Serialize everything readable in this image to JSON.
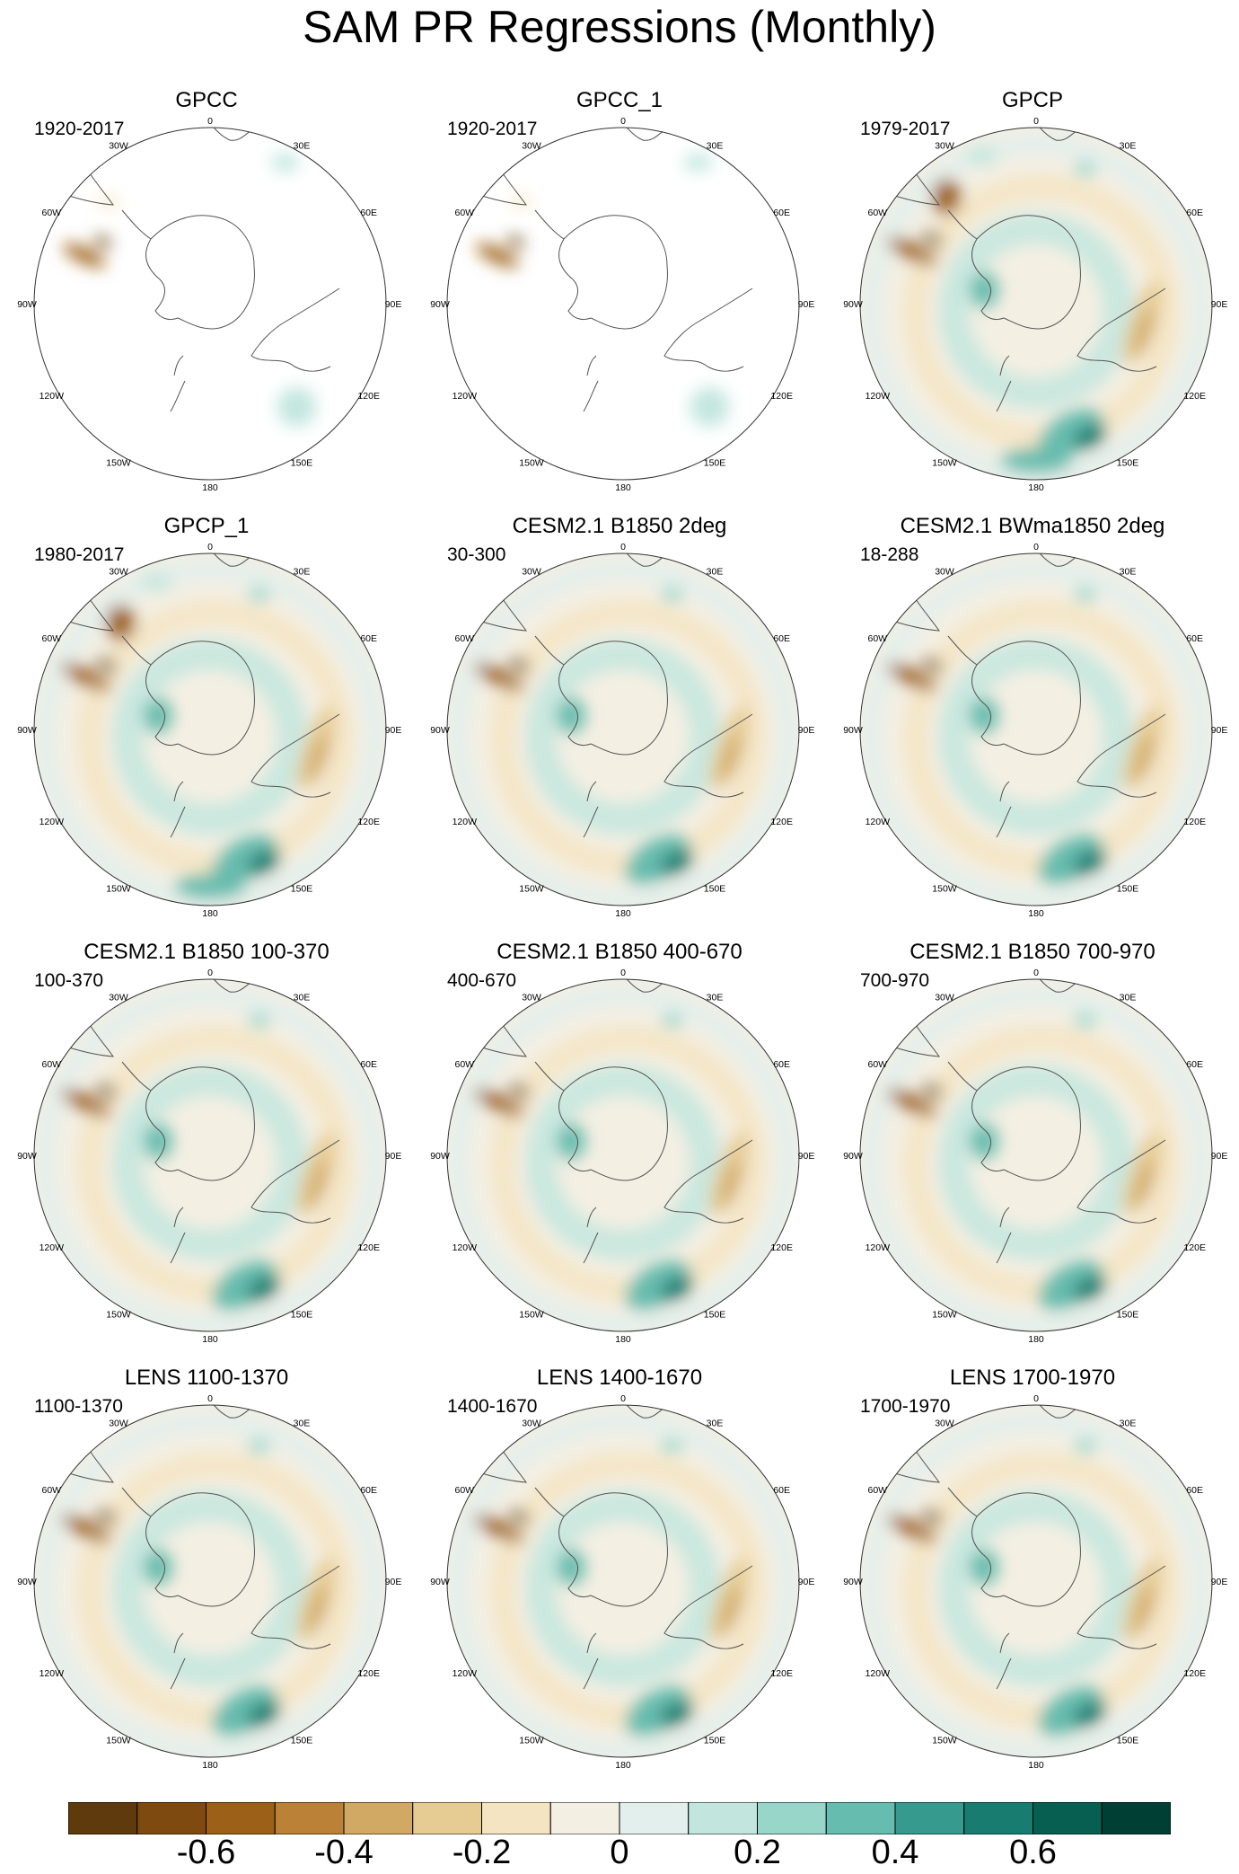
{
  "title": "SAM PR Regressions (Monthly)",
  "longitude_labels": [
    "0",
    "30E",
    "60E",
    "90E",
    "120E",
    "150E",
    "180",
    "150W",
    "120W",
    "90W",
    "60W",
    "30W"
  ],
  "panels": [
    {
      "title": "GPCC",
      "period": "1920-2017",
      "coverage": "land"
    },
    {
      "title": "GPCC_1",
      "period": "1920-2017",
      "coverage": "land"
    },
    {
      "title": "GPCP",
      "period": "1979-2017",
      "coverage": "global"
    },
    {
      "title": "GPCP_1",
      "period": "1980-2017",
      "coverage": "global"
    },
    {
      "title": "CESM2.1 B1850 2deg",
      "period": "30-300",
      "coverage": "global"
    },
    {
      "title": "CESM2.1 BWma1850 2deg",
      "period": "18-288",
      "coverage": "global"
    },
    {
      "title": "CESM2.1 B1850 100-370",
      "period": "100-370",
      "coverage": "global"
    },
    {
      "title": "CESM2.1 B1850 400-670",
      "period": "400-670",
      "coverage": "global"
    },
    {
      "title": "CESM2.1 B1850 700-970",
      "period": "700-970",
      "coverage": "global"
    },
    {
      "title": "LENS 1100-1370",
      "period": "1100-1370",
      "coverage": "global"
    },
    {
      "title": "LENS 1400-1670",
      "period": "1400-1670",
      "coverage": "global"
    },
    {
      "title": "LENS 1700-1970",
      "period": "1700-1970",
      "coverage": "global"
    }
  ],
  "colorbar": {
    "colors": [
      "#5e3a0c",
      "#7e4a10",
      "#9c6018",
      "#bb8136",
      "#d2a865",
      "#e6cb92",
      "#f4e4c1",
      "#f4efe3",
      "#e3efec",
      "#c2e6de",
      "#97d6c9",
      "#66bcae",
      "#379a8e",
      "#187c70",
      "#065f50",
      "#003f33"
    ],
    "ticks": [
      "-0.6",
      "-0.4",
      "-0.2",
      "0",
      "0.2",
      "0.4",
      "0.6"
    ],
    "tick_values": [
      -0.6,
      -0.4,
      -0.2,
      0,
      0.2,
      0.4,
      0.6
    ],
    "min": -0.8,
    "max": 0.8
  },
  "chart_data": {
    "type": "heatmap",
    "title": "SAM PR Regressions (Monthly)",
    "projection": "south polar stereographic",
    "colorbar_range": [
      -0.8,
      0.8
    ],
    "colorbar_ticks": [
      -0.6,
      -0.4,
      -0.2,
      0,
      0.2,
      0.4,
      0.6
    ],
    "colorbar_intervals": 16,
    "grid_layout": "4 rows x 3 columns",
    "grid": false
  }
}
